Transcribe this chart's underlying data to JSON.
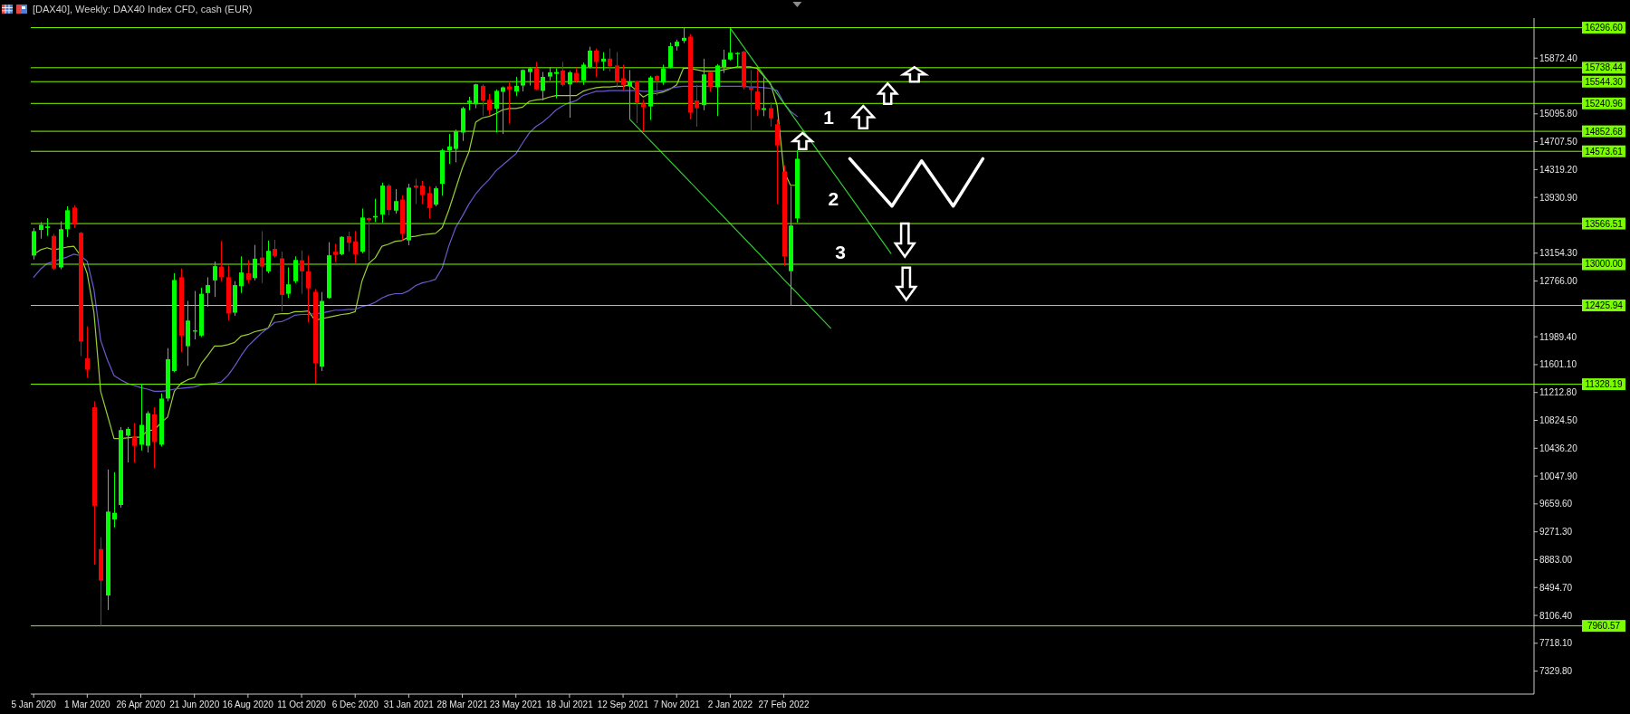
{
  "chart_data": {
    "type": "candlestick",
    "title": "[DAX40], Weekly: DAX40 Index CFD, cash (EUR)",
    "x": [
      "2020-01-05",
      "2020-01-12",
      "2020-01-19",
      "2020-01-26",
      "2020-02-02",
      "2020-02-09",
      "2020-02-16",
      "2020-02-23",
      "2020-03-01",
      "2020-03-08",
      "2020-03-15",
      "2020-03-22",
      "2020-03-29",
      "2020-04-05",
      "2020-04-12",
      "2020-04-19",
      "2020-04-26",
      "2020-05-03",
      "2020-05-10",
      "2020-05-17",
      "2020-05-24",
      "2020-05-31",
      "2020-06-07",
      "2020-06-14",
      "2020-06-21",
      "2020-06-28",
      "2020-07-05",
      "2020-07-12",
      "2020-07-19",
      "2020-07-26",
      "2020-08-02",
      "2020-08-09",
      "2020-08-16",
      "2020-08-23",
      "2020-08-30",
      "2020-09-06",
      "2020-09-13",
      "2020-09-20",
      "2020-09-27",
      "2020-10-04",
      "2020-10-11",
      "2020-10-18",
      "2020-10-25",
      "2020-11-01",
      "2020-11-08",
      "2020-11-15",
      "2020-11-22",
      "2020-11-29",
      "2020-12-06",
      "2020-12-13",
      "2020-12-20",
      "2020-12-27",
      "2021-01-03",
      "2021-01-10",
      "2021-01-17",
      "2021-01-24",
      "2021-01-31",
      "2021-02-07",
      "2021-02-14",
      "2021-02-21",
      "2021-02-28",
      "2021-03-07",
      "2021-03-14",
      "2021-03-21",
      "2021-03-28",
      "2021-04-04",
      "2021-04-11",
      "2021-04-18",
      "2021-04-25",
      "2021-05-02",
      "2021-05-09",
      "2021-05-16",
      "2021-05-23",
      "2021-05-30",
      "2021-06-06",
      "2021-06-13",
      "2021-06-20",
      "2021-06-27",
      "2021-07-04",
      "2021-07-11",
      "2021-07-18",
      "2021-07-25",
      "2021-08-01",
      "2021-08-08",
      "2021-08-15",
      "2021-08-22",
      "2021-08-29",
      "2021-09-05",
      "2021-09-12",
      "2021-09-19",
      "2021-09-26",
      "2021-10-03",
      "2021-10-10",
      "2021-10-17",
      "2021-10-24",
      "2021-10-31",
      "2021-11-07",
      "2021-11-14",
      "2021-11-21",
      "2021-11-28",
      "2021-12-05",
      "2021-12-12",
      "2021-12-19",
      "2021-12-26",
      "2022-01-02",
      "2022-01-09",
      "2022-01-16",
      "2022-01-23",
      "2022-01-30",
      "2022-02-06",
      "2022-02-13",
      "2022-02-20",
      "2022-02-27",
      "2022-03-06",
      "2022-03-13"
    ],
    "ohlc": [
      [
        13121,
        13505,
        13066,
        13461
      ],
      [
        13478,
        13587,
        13357,
        13549
      ],
      [
        13505,
        13642,
        13395,
        13527
      ],
      [
        13395,
        13423,
        12918,
        12940
      ],
      [
        12956,
        13598,
        12929,
        13489
      ],
      [
        13489,
        13807,
        13379,
        13752
      ],
      [
        13790,
        13823,
        13505,
        13560
      ],
      [
        13439,
        13450,
        11721,
        11924
      ],
      [
        11688,
        12133,
        11419,
        11529
      ],
      [
        11007,
        11090,
        8812,
        9635
      ],
      [
        9031,
        9196,
        7961,
        8592
      ],
      [
        8384,
        10140,
        8181,
        9553
      ],
      [
        9443,
        10102,
        9333,
        9536
      ],
      [
        9646,
        10733,
        9608,
        10689
      ],
      [
        10612,
        10733,
        10239,
        10706
      ],
      [
        10596,
        10788,
        10239,
        10470
      ],
      [
        10486,
        11337,
        10404,
        10761
      ],
      [
        10470,
        10953,
        10376,
        10925
      ],
      [
        10909,
        11007,
        10157,
        10524
      ],
      [
        10486,
        11200,
        10459,
        11128
      ],
      [
        11128,
        11831,
        11090,
        11677
      ],
      [
        11512,
        12874,
        11496,
        12780
      ],
      [
        12819,
        12940,
        11776,
        12006
      ],
      [
        11858,
        12490,
        11584,
        12215
      ],
      [
        12061,
        12627,
        11952,
        12078
      ],
      [
        12006,
        12671,
        11985,
        12588
      ],
      [
        12599,
        12819,
        12407,
        12709
      ],
      [
        12775,
        13038,
        12544,
        12973
      ],
      [
        12967,
        13324,
        12764,
        12819
      ],
      [
        12819,
        12984,
        12215,
        12314
      ],
      [
        12325,
        12764,
        12281,
        12709
      ],
      [
        12693,
        13110,
        12599,
        12885
      ],
      [
        12874,
        13060,
        12737,
        12786
      ],
      [
        12808,
        13269,
        12775,
        13077
      ],
      [
        13093,
        13461,
        12737,
        12967
      ],
      [
        12901,
        13329,
        12874,
        13187
      ],
      [
        13214,
        13340,
        13093,
        13115
      ],
      [
        13082,
        13176,
        12341,
        12572
      ],
      [
        12588,
        12956,
        12533,
        12720
      ],
      [
        12764,
        13110,
        12737,
        13060
      ],
      [
        13055,
        13192,
        12588,
        12901
      ],
      [
        12901,
        13121,
        12188,
        12665
      ],
      [
        12616,
        12654,
        11337,
        11622
      ],
      [
        11575,
        12613,
        11512,
        12489
      ],
      [
        12530,
        13307,
        12518,
        13124
      ],
      [
        13174,
        13286,
        13037,
        13132
      ],
      [
        13140,
        13390,
        13124,
        13382
      ],
      [
        13390,
        13456,
        13174,
        13298
      ],
      [
        13319,
        13464,
        13016,
        13140
      ],
      [
        13174,
        13776,
        13153,
        13651
      ],
      [
        13643,
        13651,
        13049,
        13614
      ],
      [
        13651,
        13913,
        13589,
        13672
      ],
      [
        13693,
        14137,
        13576,
        14096
      ],
      [
        14096,
        14116,
        13680,
        13755
      ],
      [
        13747,
        14046,
        13705,
        13880
      ],
      [
        13901,
        13963,
        13332,
        13423
      ],
      [
        13332,
        14121,
        13265,
        14067
      ],
      [
        14096,
        14191,
        13838,
        14067
      ],
      [
        14096,
        14162,
        13838,
        13963
      ],
      [
        13992,
        14087,
        13639,
        13784
      ],
      [
        13830,
        14087,
        13805,
        14058
      ],
      [
        14121,
        14607,
        13955,
        14587
      ],
      [
        14587,
        14815,
        14399,
        14641
      ],
      [
        14607,
        14876,
        14420,
        14855
      ],
      [
        14835,
        15195,
        14718,
        15175
      ],
      [
        15250,
        15333,
        15146,
        15279
      ],
      [
        15229,
        15515,
        15175,
        15507
      ],
      [
        15486,
        15507,
        15071,
        15279
      ],
      [
        15291,
        15374,
        15084,
        15146
      ],
      [
        15167,
        15436,
        14835,
        15416
      ],
      [
        15403,
        15478,
        14815,
        15465
      ],
      [
        15478,
        15540,
        14959,
        15436
      ],
      [
        15408,
        15611,
        15342,
        15486
      ],
      [
        15490,
        15715,
        15408,
        15707
      ],
      [
        15678,
        15749,
        15490,
        15728
      ],
      [
        15736,
        15819,
        15424,
        15436
      ],
      [
        15416,
        15678,
        15283,
        15611
      ],
      [
        15615,
        15749,
        15561,
        15674
      ],
      [
        15653,
        15728,
        15312,
        15678
      ],
      [
        15699,
        15819,
        15478,
        15499
      ],
      [
        15507,
        15695,
        15042,
        15674
      ],
      [
        15666,
        15740,
        15532,
        15549
      ],
      [
        15561,
        15811,
        15499,
        15781
      ],
      [
        15749,
        16031,
        15728,
        15977
      ],
      [
        15977,
        16006,
        15611,
        15819
      ],
      [
        15823,
        15956,
        15699,
        15865
      ],
      [
        15865,
        16006,
        15686,
        15757
      ],
      [
        15769,
        15956,
        15457,
        15540
      ],
      [
        15590,
        15781,
        15424,
        15499
      ],
      [
        15478,
        15707,
        15021,
        15549
      ],
      [
        15549,
        15561,
        14967,
        15250
      ],
      [
        15237,
        15291,
        14855,
        15188
      ],
      [
        15200,
        15624,
        15009,
        15603
      ],
      [
        15624,
        15632,
        15354,
        15561
      ],
      [
        15532,
        15781,
        15499,
        15728
      ],
      [
        15740,
        16089,
        15728,
        16039
      ],
      [
        16039,
        16130,
        15977,
        16101
      ],
      [
        16114,
        16297,
        16081,
        16155
      ],
      [
        16172,
        16205,
        15021,
        15113
      ],
      [
        15283,
        15499,
        14917,
        15175
      ],
      [
        15217,
        15865,
        15146,
        15645
      ],
      [
        15674,
        15686,
        15408,
        15466
      ],
      [
        15466,
        15790,
        15063,
        15769
      ],
      [
        15749,
        15990,
        15666,
        15853
      ],
      [
        15853,
        16290,
        15840,
        15948
      ],
      [
        15927,
        15956,
        15749,
        15944
      ],
      [
        15964,
        15977,
        15436,
        15466
      ],
      [
        15457,
        15707,
        14843,
        15432
      ],
      [
        15408,
        15707,
        15063,
        15158
      ],
      [
        15150,
        15603,
        15063,
        15175
      ],
      [
        15175,
        15258,
        14917,
        15034
      ],
      [
        14951,
        15021,
        13838,
        14656
      ],
      [
        14295,
        14380,
        12974,
        13111
      ],
      [
        12903,
        14087,
        12426,
        13539
      ],
      [
        13639,
        14587,
        13581,
        14470
      ]
    ],
    "colors": [
      "#00ff00",
      "#00ff00",
      "#00ff00",
      "#ff0000",
      "#00ff00",
      "#00ff00",
      "#ff0000",
      "#ff0000",
      "#ff0000",
      "#ff0000",
      "#ff0000",
      "#00ff00",
      "#00ff00",
      "#00ff00",
      "#00ff00",
      "#ff0000",
      "#00ff00",
      "#00ff00",
      "#ff0000",
      "#00ff00",
      "#00ff00",
      "#00ff00",
      "#ff0000",
      "#00ff00",
      "#00ff00",
      "#00ff00",
      "#00ff00",
      "#00ff00",
      "#ff0000",
      "#ff0000",
      "#00ff00",
      "#00ff00",
      "#ff0000",
      "#00ff00",
      "#ff0000",
      "#00ff00",
      "#ff0000",
      "#ff0000",
      "#00ff00",
      "#00ff00",
      "#ff0000",
      "#ff0000",
      "#ff0000",
      "#00ff00",
      "#00ff00",
      "#ff0000",
      "#00ff00",
      "#ff0000",
      "#ff0000",
      "#00ff00",
      "#ff0000",
      "#00ff00",
      "#00ff00",
      "#ff0000",
      "#00ff00",
      "#ff0000",
      "#00ff00",
      "#ff0000",
      "#ff0000",
      "#ff0000",
      "#00ff00",
      "#00ff00",
      "#00ff00",
      "#00ff00",
      "#00ff00",
      "#00ff00",
      "#00ff00",
      "#ff0000",
      "#ff0000",
      "#00ff00",
      "#00ff00",
      "#ff0000",
      "#00ff00",
      "#00ff00",
      "#00ff00",
      "#ff0000",
      "#00ff00",
      "#00ff00",
      "#00ff00",
      "#ff0000",
      "#00ff00",
      "#ff0000",
      "#00ff00",
      "#00ff00",
      "#ff0000",
      "#00ff00",
      "#ff0000",
      "#ff0000",
      "#ff0000",
      "#00ff00",
      "#ff0000",
      "#ff0000",
      "#00ff00",
      "#ff0000",
      "#00ff00",
      "#00ff00",
      "#00ff00",
      "#00ff00",
      "#ff0000",
      "#ff0000",
      "#00ff00",
      "#ff0000",
      "#00ff00",
      "#00ff00",
      "#00ff00",
      "#00ff00",
      "#ff0000",
      "#ff0000",
      "#ff0000",
      "#00ff00",
      "#ff0000",
      "#ff0000",
      "#ff0000",
      "#00ff00",
      "#00ff00"
    ],
    "series": [
      {
        "type": "line",
        "color": "#9acd32",
        "values": [
          13140,
          13200,
          13230,
          13200,
          13220,
          13240,
          13250,
          13120,
          12870,
          12330,
          11230,
          10900,
          10570,
          10570,
          10580,
          10590,
          10590,
          10680,
          10690,
          10790,
          10870,
          11230,
          11340,
          11390,
          11420,
          11610,
          11730,
          11860,
          11860,
          11880,
          11910,
          12000,
          12020,
          12060,
          12080,
          12110,
          12300,
          12310,
          12310,
          12340,
          12340,
          12350,
          12220,
          12240,
          12260,
          12280,
          12300,
          12310,
          12340,
          12760,
          13010,
          13090,
          13250,
          13280,
          13320,
          13330,
          13380,
          13390,
          13410,
          13420,
          13430,
          13510,
          13760,
          14050,
          14340,
          14570,
          14980,
          15040,
          15060,
          15100,
          15150,
          15170,
          15170,
          15190,
          15270,
          15290,
          15300,
          15330,
          15350,
          15350,
          15350,
          15350,
          15410,
          15440,
          15460,
          15470,
          15470,
          15480,
          15480,
          15500,
          15420,
          15330,
          15380,
          15380,
          15400,
          15440,
          15500,
          15730,
          15730,
          15710,
          15690,
          15690,
          15690,
          15710,
          15730,
          15750,
          15750,
          15750,
          15730,
          15620,
          15520,
          15210,
          14300,
          14100,
          14100
        ]
      },
      {
        "type": "line",
        "color": "#6a5acd",
        "values": [
          12820,
          12930,
          13010,
          13040,
          13070,
          13100,
          13140,
          13120,
          13040,
          12650,
          11940,
          11670,
          11450,
          11390,
          11340,
          11310,
          11280,
          11260,
          11230,
          11230,
          11240,
          11260,
          11270,
          11280,
          11290,
          11320,
          11330,
          11340,
          11360,
          11450,
          11580,
          11730,
          11860,
          11950,
          12040,
          12110,
          12190,
          12200,
          12240,
          12290,
          12300,
          12300,
          12310,
          12320,
          12340,
          12360,
          12360,
          12370,
          12370,
          12410,
          12430,
          12470,
          12530,
          12570,
          12590,
          12590,
          12630,
          12700,
          12740,
          12760,
          12790,
          12950,
          13260,
          13510,
          13670,
          13840,
          13980,
          14090,
          14180,
          14300,
          14380,
          14460,
          14540,
          14690,
          14830,
          14920,
          14980,
          15060,
          15150,
          15210,
          15250,
          15280,
          15350,
          15380,
          15410,
          15410,
          15420,
          15420,
          15420,
          15420,
          15420,
          15410,
          15410,
          15410,
          15420,
          15450,
          15470,
          15480,
          15480,
          15480,
          15480,
          15480,
          15480,
          15480,
          15480,
          15480,
          15480,
          15470,
          15470,
          15460,
          15450,
          15420,
          15250,
          15130,
          15060
        ]
      },
      {
        "type": "line",
        "color": "#32cd32",
        "x": [
          "2022-01-02",
          "2022-06-19"
        ],
        "values": [
          16290,
          13150
        ]
      },
      {
        "type": "line",
        "color": "#32cd32",
        "x": [
          "2021-09-19",
          "2022-04-17"
        ],
        "values": [
          15020,
          12110
        ]
      },
      {
        "type": "line",
        "color": "#ffffff",
        "x": [
          "2022-05-07",
          "2022-06-20",
          "2022-07-21",
          "2022-08-23",
          "2022-09-23"
        ],
        "values": [
          14470,
          13810,
          14440,
          13810,
          14470
        ]
      }
    ],
    "xlim": [
      "2020-01-02",
      "2024-04-21"
    ],
    "xticks": [
      {
        "value": "2020-01-05",
        "label": "5 Jan 2020"
      },
      {
        "value": "2020-03-01",
        "label": "1 Mar 2020"
      },
      {
        "value": "2020-04-26",
        "label": "26 Apr 2020"
      },
      {
        "value": "2020-06-21",
        "label": "21 Jun 2020"
      },
      {
        "value": "2020-08-16",
        "label": "16 Aug 2020"
      },
      {
        "value": "2020-10-11",
        "label": "11 Oct 2020"
      },
      {
        "value": "2020-12-06",
        "label": "6 Dec 2020"
      },
      {
        "value": "2021-01-31",
        "label": "31 Jan 2021"
      },
      {
        "value": "2021-03-28",
        "label": "28 Mar 2021"
      },
      {
        "value": "2021-05-23",
        "label": "23 May 2021"
      },
      {
        "value": "2021-07-18",
        "label": "18 Jul 2021"
      },
      {
        "value": "2021-09-12",
        "label": "12 Sep 2021"
      },
      {
        "value": "2021-11-07",
        "label": "7 Nov 2021"
      },
      {
        "value": "2022-01-02",
        "label": "2 Jan 2022"
      },
      {
        "value": "2022-02-27",
        "label": "27 Feb 2022"
      }
    ],
    "ylim": [
      7010,
      16430
    ],
    "yticks": [
      {
        "value": 15872.4,
        "label": "15872.40"
      },
      {
        "value": 15095.8,
        "label": "15095.80"
      },
      {
        "value": 14707.5,
        "label": "14707.50"
      },
      {
        "value": 14319.2,
        "label": "14319.20"
      },
      {
        "value": 13930.9,
        "label": "13930.90"
      },
      {
        "value": 13154.3,
        "label": "13154.30"
      },
      {
        "value": 12766,
        "label": "12766.00"
      },
      {
        "value": 11989.4,
        "label": "11989.40"
      },
      {
        "value": 11601.1,
        "label": "11601.10"
      },
      {
        "value": 11212.8,
        "label": "11212.80"
      },
      {
        "value": 10824.5,
        "label": "10824.50"
      },
      {
        "value": 10436.2,
        "label": "10436.20"
      },
      {
        "value": 10047.9,
        "label": "10047.90"
      },
      {
        "value": 9659.6,
        "label": "9659.60"
      },
      {
        "value": 9271.3,
        "label": "9271.30"
      },
      {
        "value": 8883,
        "label": "8883.00"
      },
      {
        "value": 8494.7,
        "label": "8494.70"
      },
      {
        "value": 8106.4,
        "label": "8106.40"
      },
      {
        "value": 7718.1,
        "label": "7718.10"
      },
      {
        "value": 7329.8,
        "label": "7329.80"
      }
    ],
    "ref_lines": [
      {
        "axis": "y",
        "value": 16296.6,
        "label": "16296.60",
        "color": "#7cfc00"
      },
      {
        "axis": "y",
        "value": 15738.44,
        "label": "15738.44",
        "color": "#7cfc00"
      },
      {
        "axis": "y",
        "value": 15544.3,
        "label": "15544.30",
        "color": "#7cfc00"
      },
      {
        "axis": "y",
        "value": 15240.96,
        "label": "15240.96",
        "color": "#7cfc00"
      },
      {
        "axis": "y",
        "value": 14852.68,
        "label": "14852.68",
        "color": "#7cfc00"
      },
      {
        "axis": "y",
        "value": 14573.61,
        "label": "14573.61",
        "color": "#7cfc00"
      },
      {
        "axis": "y",
        "value": 13566.51,
        "label": "13566.51",
        "color": "#7cfc00"
      },
      {
        "axis": "y",
        "value": 13000,
        "label": "13000.00",
        "color": "#7cfc00"
      },
      {
        "axis": "y",
        "value": 12425.94,
        "label": "12425.94",
        "color": "#7cfc00"
      },
      {
        "axis": "y",
        "value": 11328.19,
        "label": "11328.19",
        "color": "#7cfc00"
      },
      {
        "axis": "y",
        "value": 7960.57,
        "label": "7960.57",
        "color": "#7cfc00"
      }
    ],
    "annotations": [
      "1",
      "2",
      "3"
    ]
  }
}
